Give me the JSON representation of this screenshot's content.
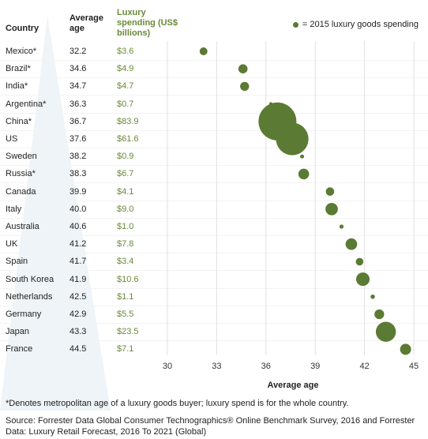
{
  "headers": {
    "country": "Country",
    "age": "Average age",
    "spending": "Luxury spending (US$ billions)"
  },
  "legend": {
    "label": "= 2015 luxury goods spending",
    "color": "#5b7a33"
  },
  "rows": [
    {
      "country": "Mexico*",
      "age": "32.2",
      "spend": "$3.6"
    },
    {
      "country": "Brazil*",
      "age": "34.6",
      "spend": "$4.9"
    },
    {
      "country": "India*",
      "age": "34.7",
      "spend": "$4.7"
    },
    {
      "country": "Argentina*",
      "age": "36.3",
      "spend": "$0.7"
    },
    {
      "country": "China*",
      "age": "36.7",
      "spend": "$83.9"
    },
    {
      "country": "US",
      "age": "37.6",
      "spend": "$61.6"
    },
    {
      "country": "Sweden",
      "age": "38.2",
      "spend": "$0.9"
    },
    {
      "country": "Russia*",
      "age": "38.3",
      "spend": "$6.7"
    },
    {
      "country": "Canada",
      "age": "39.9",
      "spend": "$4.1"
    },
    {
      "country": "Italy",
      "age": "40.0",
      "spend": "$9.0"
    },
    {
      "country": "Australia",
      "age": "40.6",
      "spend": "$1.0"
    },
    {
      "country": "UK",
      "age": "41.2",
      "spend": "$7.8"
    },
    {
      "country": "Spain",
      "age": "41.7",
      "spend": "$3.4"
    },
    {
      "country": "South Korea",
      "age": "41.9",
      "spend": "$10.6"
    },
    {
      "country": "Netherlands",
      "age": "42.5",
      "spend": "$1.1"
    },
    {
      "country": "Germany",
      "age": "42.9",
      "spend": "$5.5"
    },
    {
      "country": "Japan",
      "age": "43.3",
      "spend": "$23.5"
    },
    {
      "country": "France",
      "age": "44.5",
      "spend": "$7.1"
    }
  ],
  "chart_data": {
    "type": "scatter",
    "xlabel": "Average age",
    "ylabel": "",
    "xlim": [
      30,
      45
    ],
    "xticks": [
      30,
      33,
      36,
      39,
      42,
      45
    ],
    "grid": true,
    "series": [
      {
        "name": "2015 luxury goods spending",
        "points": [
          {
            "label": "Mexico*",
            "x": 32.2,
            "size": 3.6
          },
          {
            "label": "Brazil*",
            "x": 34.6,
            "size": 4.9
          },
          {
            "label": "India*",
            "x": 34.7,
            "size": 4.7
          },
          {
            "label": "Argentina*",
            "x": 36.3,
            "size": 0.7
          },
          {
            "label": "China*",
            "x": 36.7,
            "size": 83.9
          },
          {
            "label": "US",
            "x": 37.6,
            "size": 61.6
          },
          {
            "label": "Sweden",
            "x": 38.2,
            "size": 0.9
          },
          {
            "label": "Russia*",
            "x": 38.3,
            "size": 6.7
          },
          {
            "label": "Canada",
            "x": 39.9,
            "size": 4.1
          },
          {
            "label": "Italy",
            "x": 40.0,
            "size": 9.0
          },
          {
            "label": "Australia",
            "x": 40.6,
            "size": 1.0
          },
          {
            "label": "UK",
            "x": 41.2,
            "size": 7.8
          },
          {
            "label": "Spain",
            "x": 41.7,
            "size": 3.4
          },
          {
            "label": "South Korea",
            "x": 41.9,
            "size": 10.6
          },
          {
            "label": "Netherlands",
            "x": 42.5,
            "size": 1.1
          },
          {
            "label": "Germany",
            "x": 42.9,
            "size": 5.5
          },
          {
            "label": "Japan",
            "x": 43.3,
            "size": 23.5
          },
          {
            "label": "France",
            "x": 44.5,
            "size": 7.1
          }
        ]
      }
    ]
  },
  "note": "*Denotes metropolitan age of a luxury goods buyer; luxury spend is for the whole country.",
  "source_line1": "Source: Forrester Data Global Consumer Technographics® Online Benchmark Survey, 2016 and Forrester",
  "source_line2": "Data: Luxury Retail Forecast, 2016 To 2021 (Global)"
}
